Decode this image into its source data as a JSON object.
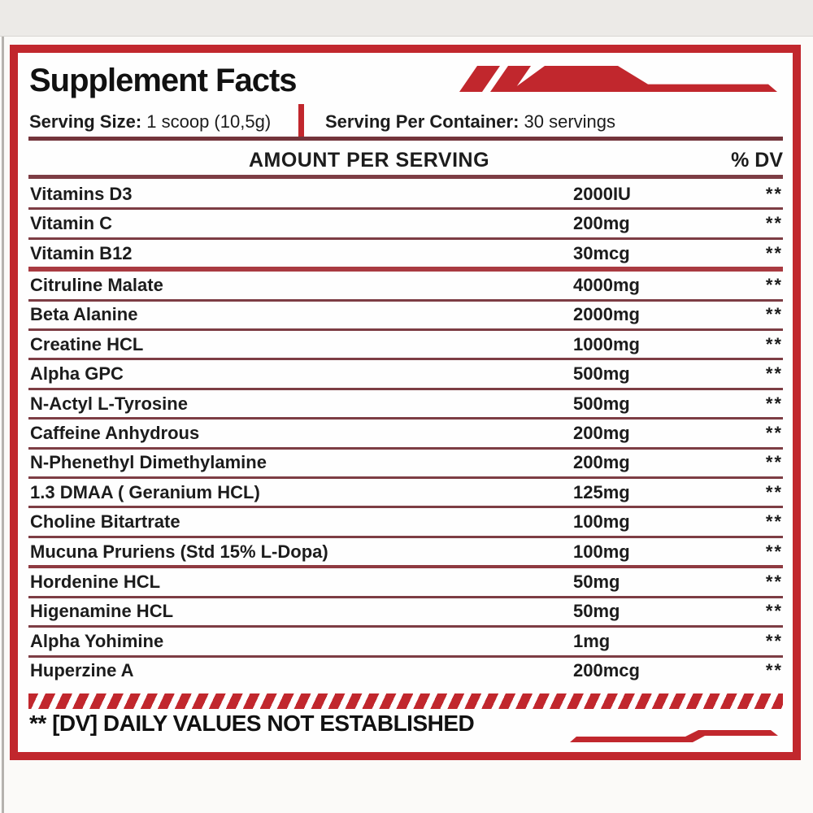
{
  "title": "Supplement Facts",
  "serving": {
    "size_label": "Serving Size:",
    "size_value": " 1 scoop (10,5g)",
    "container_label": "Serving Per Container:",
    "container_value": " 30 servings"
  },
  "table": {
    "header": {
      "amount": "AMOUNT PER SERVING",
      "dv": "% DV"
    },
    "rows": [
      {
        "name": "Vitamins D3",
        "amount": "2000IU",
        "dv": "**",
        "divider_after": "normal"
      },
      {
        "name": "Vitamin C",
        "amount": "200mg",
        "dv": "**",
        "divider_after": "normal"
      },
      {
        "name": "Vitamin B12",
        "amount": "30mcg",
        "dv": "**",
        "divider_after": "thick"
      },
      {
        "name": "Citruline Malate",
        "amount": "4000mg",
        "dv": "**",
        "divider_after": "normal"
      },
      {
        "name": "Beta Alanine",
        "amount": "2000mg",
        "dv": "**",
        "divider_after": "normal"
      },
      {
        "name": "Creatine HCL",
        "amount": "1000mg",
        "dv": "**",
        "divider_after": "normal"
      },
      {
        "name": "Alpha GPC",
        "amount": "500mg",
        "dv": "**",
        "divider_after": "normal"
      },
      {
        "name": "N-Actyl L-Tyrosine",
        "amount": "500mg",
        "dv": "**",
        "divider_after": "normal"
      },
      {
        "name": "Caffeine Anhydrous",
        "amount": "200mg",
        "dv": "**",
        "divider_after": "normal"
      },
      {
        "name": "N-Phenethyl Dimethylamine",
        "amount": "200mg",
        "dv": "**",
        "divider_after": "normal"
      },
      {
        "name": "1.3 DMAA ( Geranium HCL)",
        "amount": "125mg",
        "dv": "**",
        "divider_after": "normal"
      },
      {
        "name": "Choline Bitartrate",
        "amount": "100mg",
        "dv": "**",
        "divider_after": "normal"
      },
      {
        "name": "Mucuna Pruriens (Std 15% L-Dopa)",
        "amount": "100mg",
        "dv": "**",
        "divider_after": "medium"
      },
      {
        "name": "Hordenine HCL",
        "amount": "50mg",
        "dv": "**",
        "divider_after": "normal"
      },
      {
        "name": "Higenamine HCL",
        "amount": "50mg",
        "dv": "**",
        "divider_after": "normal"
      },
      {
        "name": "Alpha Yohimine",
        "amount": "1mg",
        "dv": "**",
        "divider_after": "normal"
      },
      {
        "name": "Huperzine A",
        "amount": "200mcg",
        "dv": "**",
        "divider_after": "last"
      }
    ]
  },
  "footer": {
    "note": "** [DV] DAILY VALUES NOT ESTABLISHED"
  },
  "colors": {
    "accent_red": "#c1272d",
    "separator_maroon": "#7d3d44",
    "group_line_red": "#a93a41",
    "text": "#1c1c1c"
  }
}
